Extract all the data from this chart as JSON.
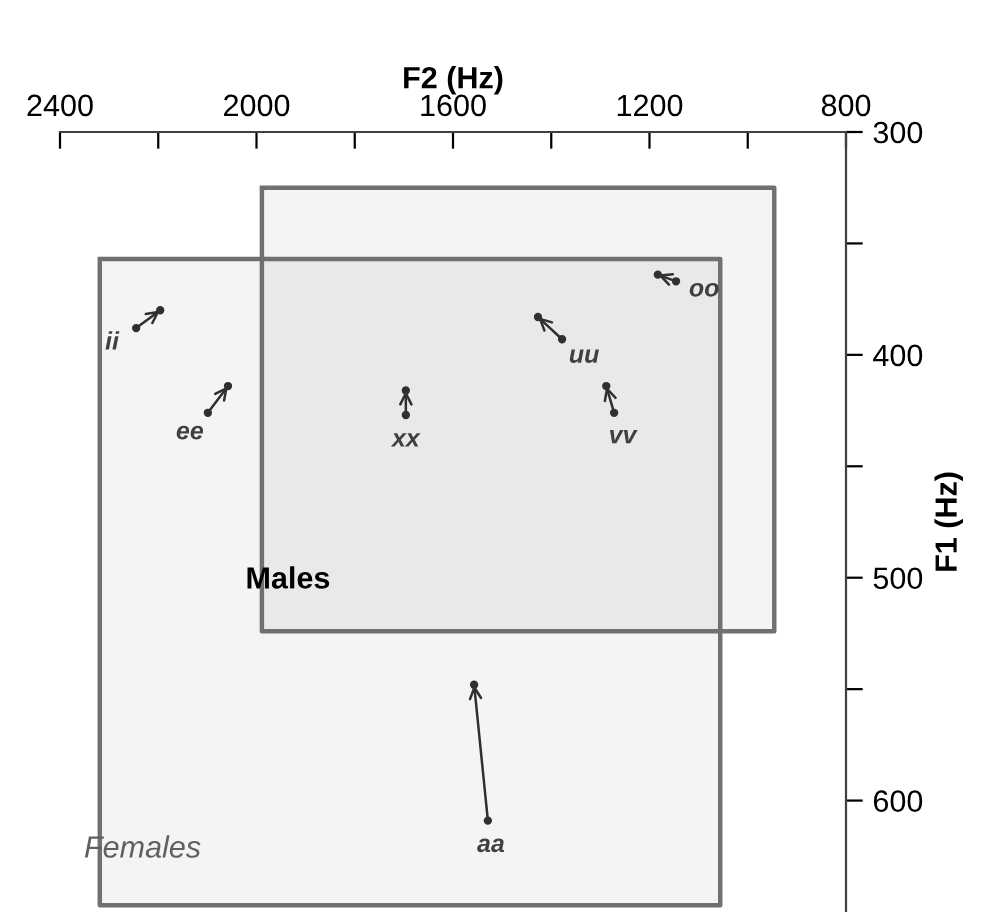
{
  "chart_data": {
    "type": "line",
    "xlabel": "F2 (Hz)",
    "ylabel": "F1 (Hz)",
    "xlim": [
      2400,
      800
    ],
    "ylim": [
      650,
      300
    ],
    "xticks": [
      2400,
      {
        "value": 2200,
        "label": null
      },
      2000,
      {
        "value": 1800,
        "label": null
      },
      1600,
      {
        "value": 1400,
        "label": null
      },
      1200,
      {
        "value": 1000,
        "label": null
      },
      800
    ],
    "yticks": [
      300,
      {
        "value": 350,
        "label": null
      },
      400,
      {
        "value": 450,
        "label": null
      },
      500,
      {
        "value": 550,
        "label": null
      },
      600
    ],
    "grid": false,
    "legend": false,
    "line_style": "solid",
    "series": [
      {
        "color": "#707070",
        "x": [
          2319,
          1056
        ],
        "values": [
          null,
          null
        ],
        "lower": [
          647,
          647
        ],
        "upper": [
          357,
          357
        ]
      },
      {
        "color": "#707070",
        "x": [
          1989,
          946
        ],
        "values": [
          null,
          null
        ],
        "lower": [
          524,
          524
        ],
        "upper": [
          325,
          325
        ]
      },
      {
        "type": "scatter",
        "marker": "circle",
        "color": "#303030",
        "x": [
          2245,
          2099,
          1696,
          1378,
          1272,
          1146,
          1529
        ],
        "values": [
          388,
          426,
          427,
          393,
          426,
          367,
          609
        ],
        "value_labels": [
          "ii",
          "ee",
          "xx",
          "uu",
          "vv",
          "oo",
          "aa"
        ]
      },
      {
        "type": "scatter",
        "marker": "circle",
        "color": "#303030",
        "x": [
          2196,
          2058,
          1696,
          1427,
          1288,
          1183,
          1557
        ],
        "values": [
          380,
          414,
          416,
          383,
          414,
          364,
          548
        ]
      }
    ],
    "annotations": [
      "Males",
      "Females"
    ]
  }
}
